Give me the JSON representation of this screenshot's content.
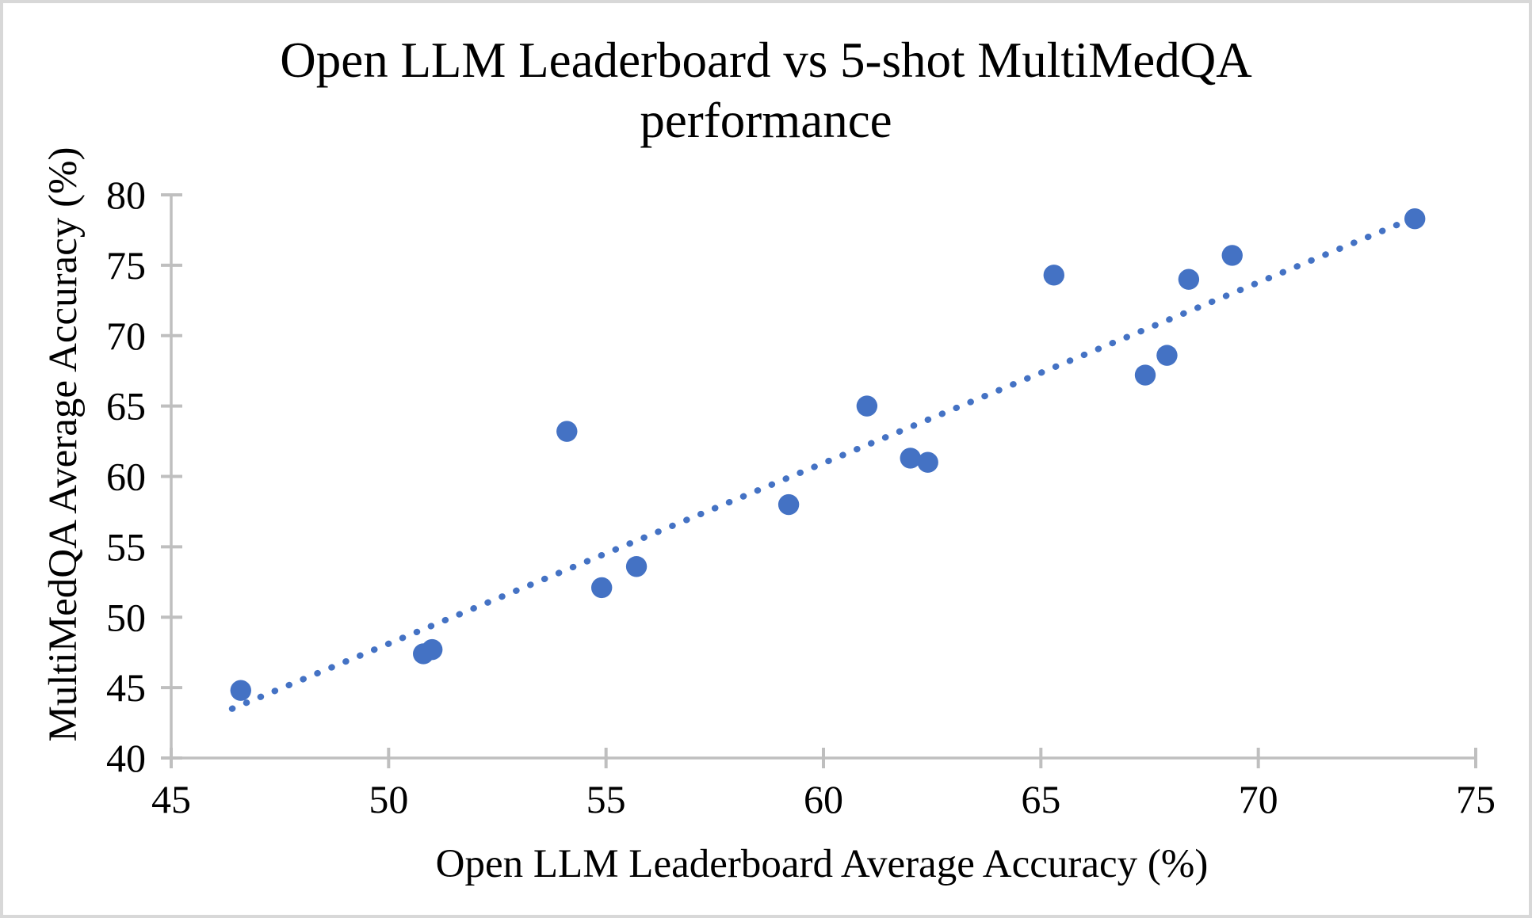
{
  "window": {
    "background_color": "#FFFFFF",
    "border_color": "#D8D8D8"
  },
  "chart_data": {
    "type": "scatter",
    "title": "Open LLM Leaderboard vs 5-shot MultiMedQA performance",
    "title_lines": [
      "Open LLM Leaderboard vs 5-shot MultiMedQA",
      "performance"
    ],
    "xlabel": "Open LLM Leaderboard Average Accuracy (%)",
    "ylabel": "MultiMedQA Average Accuracy (%)",
    "xlim": [
      45,
      75
    ],
    "ylim": [
      40,
      80
    ],
    "x_ticks": [
      "45",
      "50",
      "55",
      "60",
      "65",
      "70",
      "75"
    ],
    "y_ticks": [
      "40",
      "45",
      "50",
      "55",
      "60",
      "65",
      "70",
      "75",
      "80"
    ],
    "grid": false,
    "legend_position": "none",
    "marker_color": "#4472C4",
    "trendline_color": "#4472C4",
    "axis_color": "#BFBFBF",
    "text_color": "#000000",
    "points": [
      {
        "x": 46.6,
        "y": 44.8
      },
      {
        "x": 50.8,
        "y": 47.4
      },
      {
        "x": 51.0,
        "y": 47.7
      },
      {
        "x": 54.1,
        "y": 63.2
      },
      {
        "x": 54.9,
        "y": 52.1
      },
      {
        "x": 55.7,
        "y": 53.6
      },
      {
        "x": 59.2,
        "y": 58.0
      },
      {
        "x": 61.0,
        "y": 65.0
      },
      {
        "x": 62.0,
        "y": 61.3
      },
      {
        "x": 62.4,
        "y": 61.0
      },
      {
        "x": 65.3,
        "y": 74.3
      },
      {
        "x": 67.4,
        "y": 67.2
      },
      {
        "x": 67.9,
        "y": 68.6
      },
      {
        "x": 68.4,
        "y": 74.0
      },
      {
        "x": 69.4,
        "y": 75.7
      },
      {
        "x": 73.6,
        "y": 78.3
      }
    ],
    "trendline": {
      "style": "dotted",
      "x1": 46.4,
      "y1": 43.5,
      "x2": 73.45,
      "y2": 78.2
    }
  }
}
